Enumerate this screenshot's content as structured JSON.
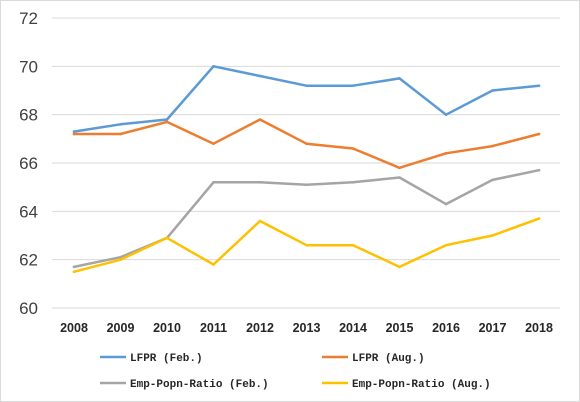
{
  "chart_data": {
    "type": "line",
    "title": "",
    "xlabel": "",
    "ylabel": "",
    "x": [
      "2008",
      "2009",
      "2010",
      "2011",
      "2012",
      "2013",
      "2014",
      "2015",
      "2016",
      "2017",
      "2018"
    ],
    "ylim": [
      60,
      72
    ],
    "yticks": [
      "60",
      "62",
      "64",
      "66",
      "68",
      "70",
      "72"
    ],
    "grid": "horizontal",
    "legend_position": "bottom",
    "series": [
      {
        "name": "LFPR (Feb.)",
        "color": "#5b9bd5",
        "values": [
          67.3,
          67.6,
          67.8,
          70.0,
          69.6,
          69.2,
          69.2,
          69.5,
          68.0,
          69.0,
          69.2
        ]
      },
      {
        "name": "LFPR (Aug.)",
        "color": "#ed7d31",
        "values": [
          67.2,
          67.2,
          67.7,
          66.8,
          67.8,
          66.8,
          66.6,
          65.8,
          66.4,
          66.7,
          67.2
        ]
      },
      {
        "name": "Emp-Popn-Ratio (Feb.)",
        "color": "#a5a5a5",
        "values": [
          61.7,
          62.1,
          62.9,
          65.2,
          65.2,
          65.1,
          65.2,
          65.4,
          64.3,
          65.3,
          65.7
        ]
      },
      {
        "name": "Emp-Popn-Ratio (Aug.)",
        "color": "#ffc000",
        "values": [
          61.5,
          62.0,
          62.9,
          61.8,
          63.6,
          62.6,
          62.6,
          61.7,
          62.6,
          63.0,
          63.7
        ]
      }
    ]
  }
}
